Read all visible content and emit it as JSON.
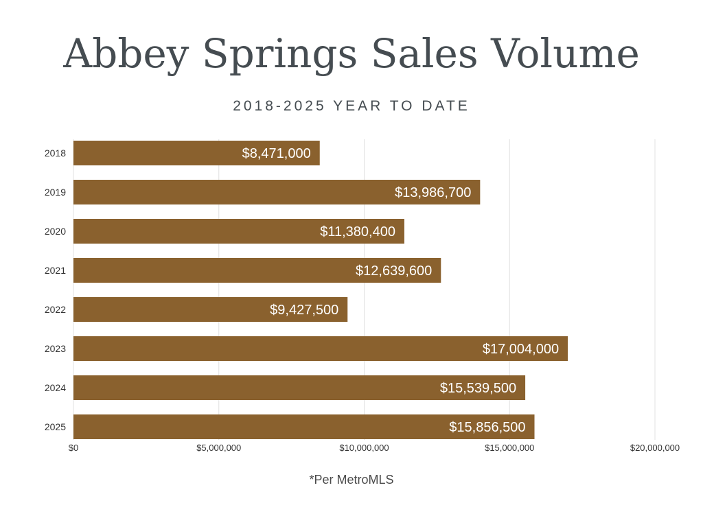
{
  "chart_data": {
    "type": "bar",
    "orientation": "horizontal",
    "title": "Abbey Springs Sales Volume",
    "subtitle": "2018-2025 YEAR TO DATE",
    "categories": [
      "2018",
      "2019",
      "2020",
      "2021",
      "2022",
      "2023",
      "2024",
      "2025"
    ],
    "values": [
      8471000,
      13986700,
      11380400,
      12639600,
      9427500,
      17004000,
      15539500,
      15856500
    ],
    "data_labels": [
      "$8,471,000",
      "$13,986,700",
      "$11,380,400",
      "$12,639,600",
      "$9,427,500",
      "$17,004,000",
      "$15,539,500",
      "$15,856,500"
    ],
    "x_ticks": [
      0,
      5000000,
      10000000,
      15000000,
      20000000
    ],
    "x_tick_labels": [
      "$0",
      "$5,000,000",
      "$10,000,000",
      "$15,000,000",
      "$20,000,000"
    ],
    "xlim": [
      0,
      20000000
    ],
    "xlabel": "",
    "ylabel": "",
    "grid": "vertical",
    "legend": "none",
    "bar_color": "#8a612e",
    "label_color": "#ffffff",
    "footnote": "*Per MetroMLS"
  }
}
